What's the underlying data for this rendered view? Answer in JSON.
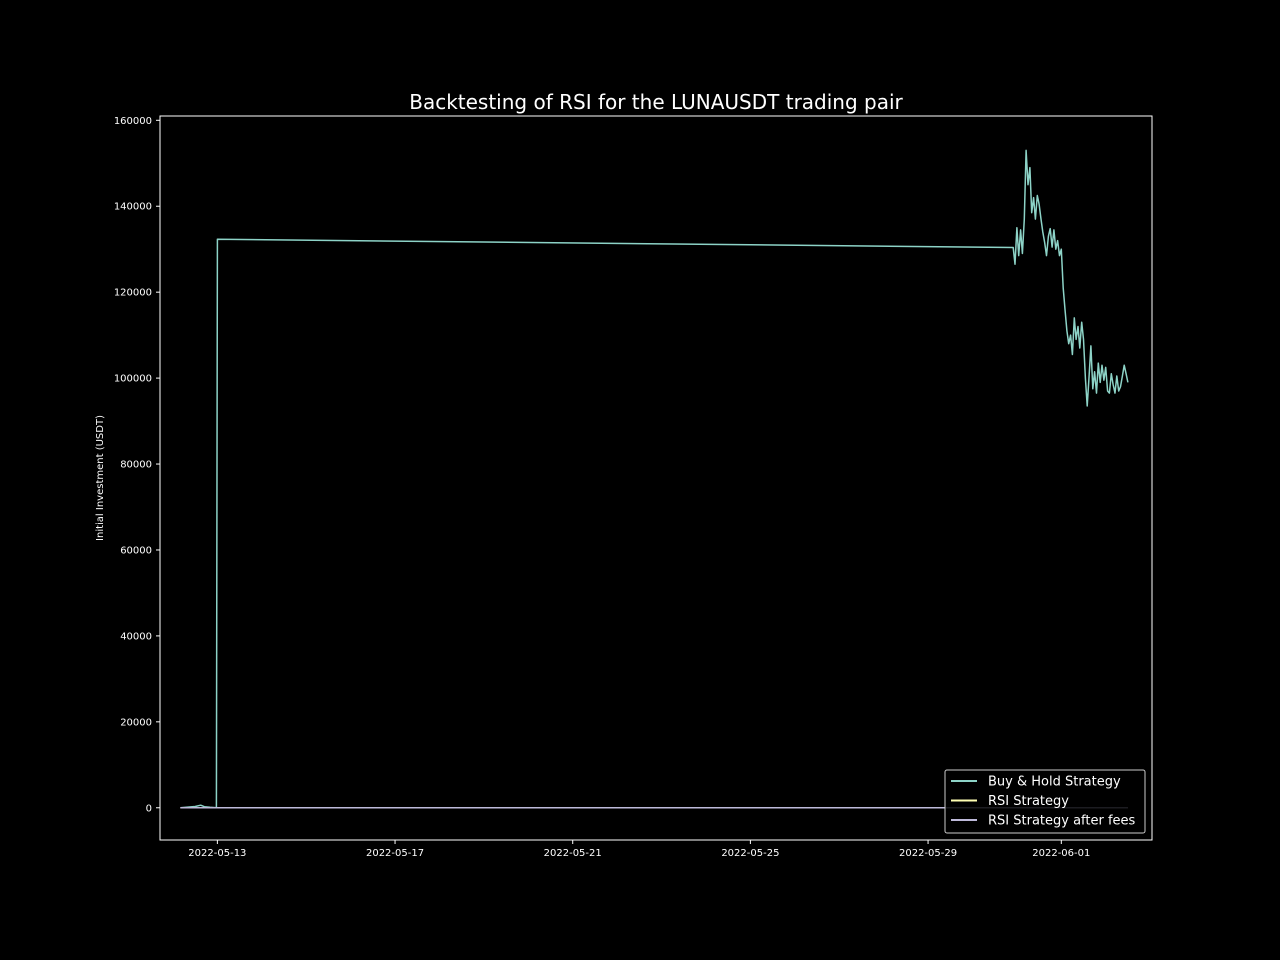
{
  "chart_data": {
    "type": "line",
    "title": "Backtesting of RSI for the LUNAUSDT trading pair",
    "xlabel": "",
    "ylabel": "Initial Investment (USDT)",
    "x_ticks": [
      "2022-05-13",
      "2022-05-17",
      "2022-05-21",
      "2022-05-25",
      "2022-05-29",
      "2022-06-01"
    ],
    "y_ticks": [
      0,
      20000,
      40000,
      60000,
      80000,
      100000,
      120000,
      140000,
      160000
    ],
    "xlim": [
      "2022-05-11 17:00",
      "2022-06-03 01:00"
    ],
    "ylim": [
      -7500,
      161000
    ],
    "grid": false,
    "legend_position": "lower-right",
    "series": [
      {
        "name": "Buy & Hold Strategy",
        "color": "#8dd3c7",
        "points": [
          [
            "2022-05-12 04:00",
            0
          ],
          [
            "2022-05-12 08:00",
            150
          ],
          [
            "2022-05-12 12:00",
            300
          ],
          [
            "2022-05-12 15:00",
            600
          ],
          [
            "2022-05-12 17:00",
            250
          ],
          [
            "2022-05-12 20:00",
            100
          ],
          [
            "2022-05-12 23:30",
            0
          ],
          [
            "2022-05-13 00:00",
            132300
          ],
          [
            "2022-05-30 22:00",
            130400
          ],
          [
            "2022-05-30 23:00",
            126500
          ],
          [
            "2022-05-31 00:00",
            135000
          ],
          [
            "2022-05-31 01:00",
            128500
          ],
          [
            "2022-05-31 02:00",
            134500
          ],
          [
            "2022-05-31 03:00",
            129000
          ],
          [
            "2022-05-31 04:00",
            137000
          ],
          [
            "2022-05-31 05:00",
            153000
          ],
          [
            "2022-05-31 06:00",
            145000
          ],
          [
            "2022-05-31 07:00",
            149000
          ],
          [
            "2022-05-31 08:00",
            138500
          ],
          [
            "2022-05-31 09:00",
            142000
          ],
          [
            "2022-05-31 10:00",
            137000
          ],
          [
            "2022-05-31 11:00",
            142500
          ],
          [
            "2022-05-31 12:00",
            140500
          ],
          [
            "2022-05-31 13:00",
            137000
          ],
          [
            "2022-05-31 14:00",
            134000
          ],
          [
            "2022-05-31 15:00",
            131500
          ],
          [
            "2022-05-31 16:00",
            128500
          ],
          [
            "2022-05-31 17:00",
            133000
          ],
          [
            "2022-05-31 18:00",
            134800
          ],
          [
            "2022-05-31 19:00",
            130500
          ],
          [
            "2022-05-31 20:00",
            134500
          ],
          [
            "2022-05-31 21:00",
            130000
          ],
          [
            "2022-05-31 22:00",
            132000
          ],
          [
            "2022-05-31 23:00",
            128500
          ],
          [
            "2022-06-01 00:00",
            130000
          ],
          [
            "2022-06-01 01:00",
            121000
          ],
          [
            "2022-06-01 02:00",
            116000
          ],
          [
            "2022-06-01 03:00",
            111000
          ],
          [
            "2022-06-01 04:00",
            108000
          ],
          [
            "2022-06-01 05:00",
            110000
          ],
          [
            "2022-06-01 06:00",
            105500
          ],
          [
            "2022-06-01 07:00",
            114000
          ],
          [
            "2022-06-01 08:00",
            109000
          ],
          [
            "2022-06-01 09:00",
            112000
          ],
          [
            "2022-06-01 10:00",
            107000
          ],
          [
            "2022-06-01 11:00",
            113000
          ],
          [
            "2022-06-01 12:00",
            109000
          ],
          [
            "2022-06-01 13:00",
            100000
          ],
          [
            "2022-06-01 14:00",
            93500
          ],
          [
            "2022-06-01 15:00",
            100500
          ],
          [
            "2022-06-01 16:00",
            107500
          ],
          [
            "2022-06-01 17:00",
            97500
          ],
          [
            "2022-06-01 18:00",
            101500
          ],
          [
            "2022-06-01 19:00",
            96500
          ],
          [
            "2022-06-01 20:00",
            103500
          ],
          [
            "2022-06-01 21:00",
            99000
          ],
          [
            "2022-06-01 22:00",
            103000
          ],
          [
            "2022-06-01 23:00",
            99500
          ],
          [
            "2022-06-02 00:00",
            102500
          ],
          [
            "2022-06-02 01:00",
            97000
          ],
          [
            "2022-06-02 02:00",
            96500
          ],
          [
            "2022-06-02 03:00",
            101000
          ],
          [
            "2022-06-02 04:00",
            98500
          ],
          [
            "2022-06-02 05:00",
            96500
          ],
          [
            "2022-06-02 06:00",
            100500
          ],
          [
            "2022-06-02 07:00",
            97000
          ],
          [
            "2022-06-02 08:00",
            98000
          ],
          [
            "2022-06-02 09:00",
            100500
          ],
          [
            "2022-06-02 10:00",
            103000
          ],
          [
            "2022-06-02 11:00",
            101000
          ],
          [
            "2022-06-02 12:00",
            99000
          ]
        ]
      },
      {
        "name": "RSI Strategy",
        "color": "#ffffb3",
        "points": [
          [
            "2022-05-12 04:00",
            0
          ],
          [
            "2022-06-02 12:00",
            0
          ]
        ]
      },
      {
        "name": "RSI Strategy after fees",
        "color": "#bebada",
        "points": [
          [
            "2022-05-12 04:00",
            0
          ],
          [
            "2022-06-02 12:00",
            0
          ]
        ]
      }
    ]
  }
}
